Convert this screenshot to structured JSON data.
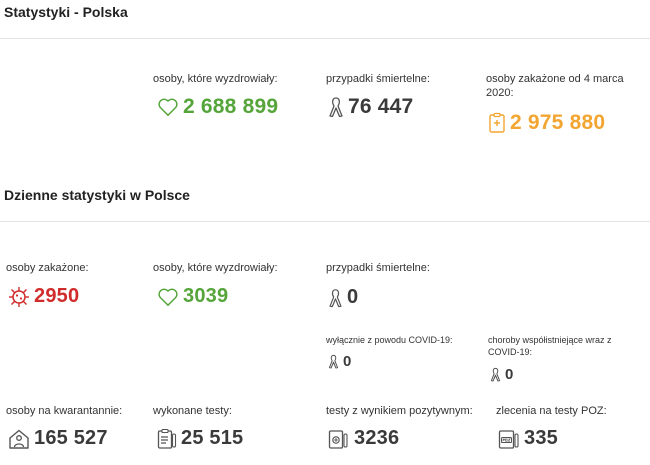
{
  "poland": {
    "title": "Statystyki - Polska",
    "recovered": {
      "label": "osoby, które wyzdrowiały:",
      "value": "2 688 899",
      "icon": "heart-icon"
    },
    "deaths": {
      "label": "przypadki śmiertelne:",
      "value": "76 447",
      "icon": "ribbon-icon"
    },
    "infected_total": {
      "label": "osoby zakażone od 4 marca 2020:",
      "value": "2 975 880",
      "icon": "clipboard-medical-icon"
    }
  },
  "daily": {
    "title": "Dzienne statystyki w Polsce",
    "infected": {
      "label": "osoby zakażone:",
      "value": "2950",
      "icon": "virus-icon"
    },
    "recovered": {
      "label": "osoby, które wyzdrowiały:",
      "value": "3039",
      "icon": "heart-icon"
    },
    "deaths": {
      "label": "przypadki śmiertelne:",
      "value": "0",
      "icon": "ribbon-icon"
    },
    "covid_only": {
      "label": "wyłącznie z powodu COVID-19:",
      "value": "0",
      "icon": "ribbon-icon"
    },
    "comorbid": {
      "label": "choroby współistniejące wraz z COVID-19:",
      "value": "0",
      "icon": "ribbon-icon"
    },
    "quarantine": {
      "label": "osoby na kwarantannie:",
      "value": "165 527",
      "icon": "house-person-icon"
    },
    "tests": {
      "label": "wykonane testy:",
      "value": "25 515",
      "icon": "test-clipboard-icon"
    },
    "positive_tests": {
      "label": "testy z wynikiem pozytywnym:",
      "value": "3236",
      "icon": "positive-test-icon"
    },
    "poz_orders": {
      "label": "zlecenia na testy POZ:",
      "value": "335",
      "icon": "poz-icon"
    }
  },
  "colors": {
    "green": "#56a53b",
    "red": "#d12c2c",
    "orange": "#f2a531",
    "dark": "#3a3a3a"
  }
}
